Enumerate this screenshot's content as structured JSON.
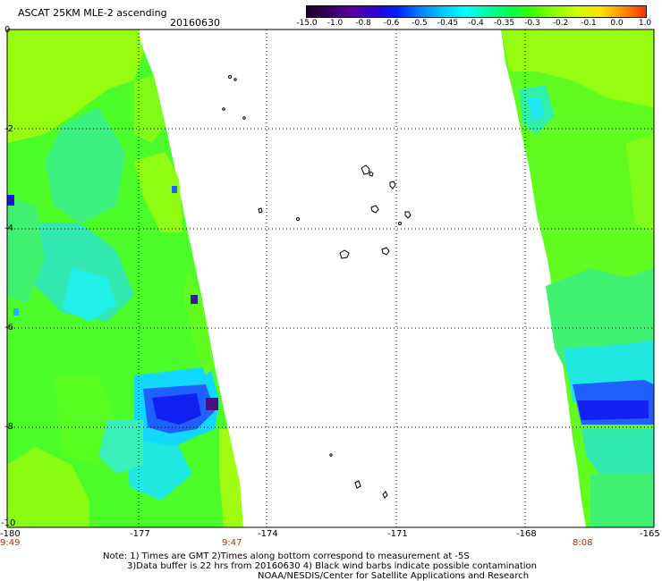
{
  "header": {
    "title": "ASCAT 25KM MLE-2 ascending",
    "date": "20160630"
  },
  "colorbar": {
    "labels": [
      "-15.0",
      "-1.0",
      "-0.8",
      "-0.6",
      "-0.5",
      "-0.45",
      "-0.4",
      "-0.35",
      "-0.3",
      "-0.2",
      "-0.1",
      "0.0",
      "1.0"
    ],
    "colors": [
      "#1a0020",
      "#5a00a0",
      "#2000e0",
      "#0040ff",
      "#00b0ff",
      "#00ffff",
      "#00ffa0",
      "#00ff40",
      "#40ff00",
      "#a0ff00",
      "#ffff00",
      "#ff8000",
      "#ff2000"
    ]
  },
  "axes": {
    "x_ticks": [
      "-180",
      "-177",
      "-174",
      "-171",
      "-168",
      "-165"
    ],
    "y_ticks": [
      "0",
      "-2",
      "-4",
      "-6",
      "-8",
      "-10"
    ],
    "x_range": [
      -180,
      -165
    ],
    "y_range": [
      -10,
      0
    ]
  },
  "times": {
    "left": "9:49",
    "middle": "9:47",
    "right": "8:08"
  },
  "notes": {
    "line1": "Note: 1) Times are GMT 2)Times along bottom correspond to measurement at -5S",
    "line2": "3)Data buffer is 22 hrs from 20160630 4) Black wind barbs indicate possible contamination",
    "line3": "NOAA/NESDIS/Center for Satellite Applications and Research"
  }
}
